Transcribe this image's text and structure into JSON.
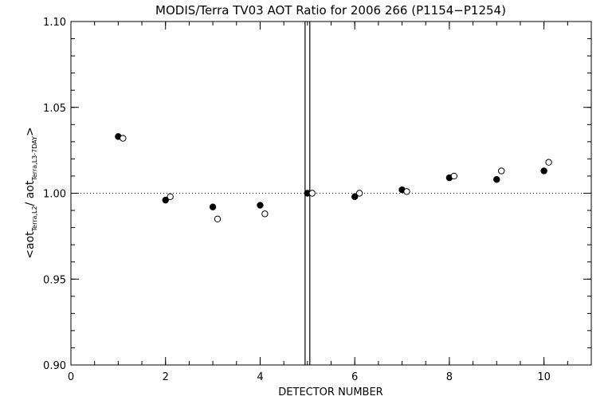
{
  "chart_data": {
    "type": "scatter",
    "title": "MODIS/Terra TV03 AOT Ratio for 2006 266 (P1154−P1254)",
    "xlabel": "DETECTOR NUMBER",
    "ylabel": {
      "prefix": "<aot",
      "sub1": "Terra,L2",
      "middle": "/ aot",
      "sub2": "Terra,L3-7DAY",
      "suffix": ">"
    },
    "xlim": [
      0,
      11
    ],
    "ylim": [
      0.9,
      1.1
    ],
    "x_ticks": [
      0,
      2,
      4,
      6,
      8,
      10
    ],
    "x_tick_labels": [
      "0",
      "2",
      "4",
      "6",
      "8",
      "10"
    ],
    "x_minor_step": 0.5,
    "y_ticks": [
      0.9,
      0.95,
      1.0,
      1.05,
      1.1
    ],
    "y_tick_labels": [
      "0.90",
      "0.95",
      "1.00",
      "1.05",
      "1.10"
    ],
    "y_minor_step": 0.01,
    "reference_line_y": 1.0,
    "vertical_lines_x": [
      4.95,
      5.05
    ],
    "grid": false,
    "series": [
      {
        "marker": "filled-circle",
        "color": "#000000",
        "x": [
          1,
          2,
          3,
          4,
          5,
          6,
          7,
          8,
          9,
          10
        ],
        "y": [
          1.033,
          0.996,
          0.992,
          0.993,
          1.0,
          0.998,
          1.002,
          1.009,
          1.008,
          1.013
        ]
      },
      {
        "marker": "open-circle",
        "color": "#000000",
        "x": [
          1.1,
          2.1,
          3.1,
          4.1,
          5.1,
          6.1,
          7.1,
          8.1,
          9.1,
          10.1
        ],
        "y": [
          1.032,
          0.998,
          0.985,
          0.988,
          1.0,
          1.0,
          1.001,
          1.01,
          1.013,
          1.018
        ]
      }
    ]
  }
}
